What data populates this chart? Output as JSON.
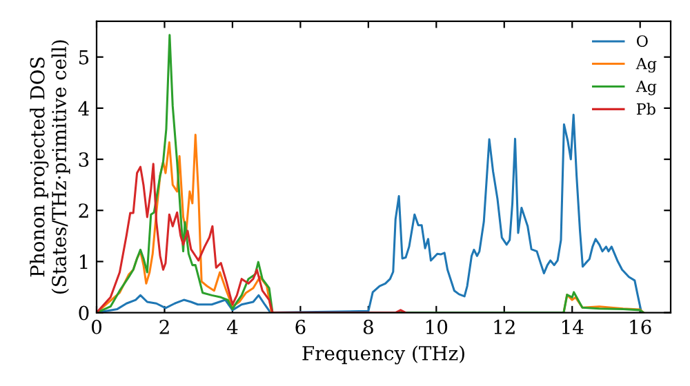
{
  "chart_data": {
    "type": "line",
    "xlabel": "Frequency (THz)",
    "ylabel": "Phonon projected DOS\n(States/THz·primitive cell)",
    "xlim": [
      0,
      16.9
    ],
    "ylim": [
      0,
      5.7
    ],
    "xticks": [
      0,
      2,
      4,
      6,
      8,
      10,
      12,
      14,
      16
    ],
    "yticks": [
      0,
      1,
      2,
      3,
      4,
      5
    ],
    "grid": false,
    "legend": "top right",
    "marker": "none",
    "line_style": "solid",
    "series": [
      {
        "name": "O",
        "color": "#1f77b4",
        "x": [
          0,
          0.61,
          0.88,
          1.15,
          1.29,
          1.49,
          1.76,
          2.03,
          2.3,
          2.57,
          2.78,
          2.98,
          3.39,
          3.79,
          4.0,
          4.27,
          4.61,
          4.77,
          4.95,
          5.12,
          8.0,
          8.13,
          8.33,
          8.5,
          8.64,
          8.73,
          8.8,
          8.9,
          9.0,
          9.1,
          9.2,
          9.36,
          9.47,
          9.57,
          9.67,
          9.76,
          9.84,
          10.03,
          10.13,
          10.24,
          10.33,
          10.53,
          10.67,
          10.83,
          10.91,
          11.04,
          11.11,
          11.2,
          11.27,
          11.4,
          11.56,
          11.67,
          11.8,
          11.93,
          12.07,
          12.16,
          12.24,
          12.32,
          12.41,
          12.51,
          12.6,
          12.69,
          12.8,
          12.96,
          13.07,
          13.17,
          13.27,
          13.36,
          13.47,
          13.57,
          13.67,
          13.76,
          13.87,
          13.96,
          14.04,
          14.13,
          14.23,
          14.31,
          14.4,
          14.51,
          14.6,
          14.69,
          14.8,
          14.89,
          15.0,
          15.07,
          15.16,
          15.33,
          15.47,
          15.67,
          15.84,
          15.93,
          16.03
        ],
        "values": [
          0,
          0.07,
          0.18,
          0.25,
          0.34,
          0.21,
          0.18,
          0.09,
          0.18,
          0.25,
          0.21,
          0.16,
          0.16,
          0.25,
          0.05,
          0.16,
          0.21,
          0.34,
          0.16,
          0,
          0.03,
          0.4,
          0.52,
          0.57,
          0.66,
          0.8,
          1.83,
          2.28,
          1.06,
          1.08,
          1.29,
          1.92,
          1.71,
          1.71,
          1.26,
          1.44,
          1.02,
          1.15,
          1.14,
          1.17,
          0.84,
          0.43,
          0.36,
          0.32,
          0.52,
          1.11,
          1.23,
          1.11,
          1.2,
          1.78,
          3.39,
          2.77,
          2.23,
          1.47,
          1.33,
          1.42,
          2.14,
          3.4,
          1.56,
          2.05,
          1.87,
          1.69,
          1.24,
          1.2,
          0.97,
          0.77,
          0.93,
          1.02,
          0.93,
          1.02,
          1.42,
          3.68,
          3.36,
          3.0,
          3.87,
          2.68,
          1.6,
          0.9,
          0.97,
          1.05,
          1.29,
          1.44,
          1.33,
          1.2,
          1.29,
          1.2,
          1.29,
          1.02,
          0.84,
          0.7,
          0.63,
          0.34,
          0.03
        ]
      },
      {
        "name": "Ag",
        "color": "#ff7f0e",
        "x": [
          0,
          0.68,
          0.95,
          1.08,
          1.19,
          1.29,
          1.38,
          1.46,
          1.56,
          1.65,
          1.76,
          1.87,
          1.96,
          2.03,
          2.14,
          2.24,
          2.37,
          2.44,
          2.55,
          2.64,
          2.74,
          2.82,
          2.91,
          3.0,
          3.09,
          3.25,
          3.46,
          3.63,
          3.82,
          4.0,
          4.2,
          4.4,
          4.61,
          4.81,
          5.01,
          5.15,
          13.75,
          13.85,
          14.0,
          14.1,
          14.3,
          14.8,
          15.5,
          16.0,
          16.1
        ],
        "values": [
          0,
          0.39,
          0.75,
          0.84,
          1.06,
          1.2,
          0.93,
          0.57,
          0.79,
          1.15,
          1.96,
          2.68,
          2.95,
          2.73,
          3.33,
          2.5,
          2.37,
          3.06,
          1.87,
          1.6,
          2.37,
          2.14,
          3.48,
          2.32,
          0.61,
          0.52,
          0.43,
          0.79,
          0.43,
          0.12,
          0.21,
          0.39,
          0.48,
          0.7,
          0.52,
          0,
          0,
          0.35,
          0.25,
          0.3,
          0.1,
          0.12,
          0.08,
          0.06,
          0
        ]
      },
      {
        "name": "Ag",
        "color": "#2ca02c",
        "x": [
          0,
          0.41,
          0.68,
          0.95,
          1.08,
          1.19,
          1.29,
          1.38,
          1.49,
          1.6,
          1.69,
          1.76,
          1.87,
          1.96,
          2.05,
          2.15,
          2.24,
          2.37,
          2.47,
          2.55,
          2.6,
          2.71,
          2.82,
          2.91,
          3.0,
          3.12,
          3.39,
          3.66,
          3.86,
          4.0,
          4.13,
          4.27,
          4.47,
          4.67,
          4.76,
          4.88,
          5.08,
          5.18,
          13.75,
          13.85,
          14.0,
          14.05,
          14.3,
          14.8,
          15.5,
          16.0,
          16.1
        ],
        "values": [
          0,
          0.12,
          0.43,
          0.7,
          0.84,
          1.06,
          1.23,
          1.06,
          0.79,
          1.92,
          1.96,
          2.23,
          2.68,
          2.95,
          3.59,
          5.43,
          4.04,
          2.95,
          1.96,
          1.2,
          1.77,
          1.15,
          0.93,
          0.93,
          0.7,
          0.39,
          0.34,
          0.3,
          0.25,
          0.07,
          0.21,
          0.34,
          0.66,
          0.75,
          0.99,
          0.66,
          0.48,
          0,
          0,
          0.35,
          0.3,
          0.4,
          0.1,
          0.08,
          0.07,
          0.05,
          0
        ]
      },
      {
        "name": "Pb",
        "color": "#d62728",
        "x": [
          0,
          0.41,
          0.68,
          0.88,
          0.99,
          1.08,
          1.19,
          1.29,
          1.38,
          1.49,
          1.6,
          1.67,
          1.76,
          1.87,
          1.96,
          2.03,
          2.14,
          2.24,
          2.37,
          2.47,
          2.55,
          2.68,
          2.78,
          2.91,
          3.0,
          3.18,
          3.32,
          3.41,
          3.52,
          3.66,
          3.82,
          4.0,
          4.13,
          4.27,
          4.47,
          4.61,
          4.72,
          4.88,
          5.08,
          5.18,
          8.8,
          8.95,
          9.1
        ],
        "values": [
          0,
          0.3,
          0.79,
          1.51,
          1.95,
          1.95,
          2.73,
          2.85,
          2.5,
          1.87,
          2.41,
          2.91,
          1.78,
          1.11,
          0.84,
          0.97,
          1.92,
          1.69,
          1.96,
          1.51,
          1.33,
          1.6,
          1.24,
          1.11,
          1.02,
          1.29,
          1.47,
          1.69,
          0.88,
          0.97,
          0.61,
          0.16,
          0.34,
          0.66,
          0.57,
          0.66,
          0.84,
          0.43,
          0.25,
          0,
          0,
          0.05,
          0
        ]
      }
    ]
  }
}
